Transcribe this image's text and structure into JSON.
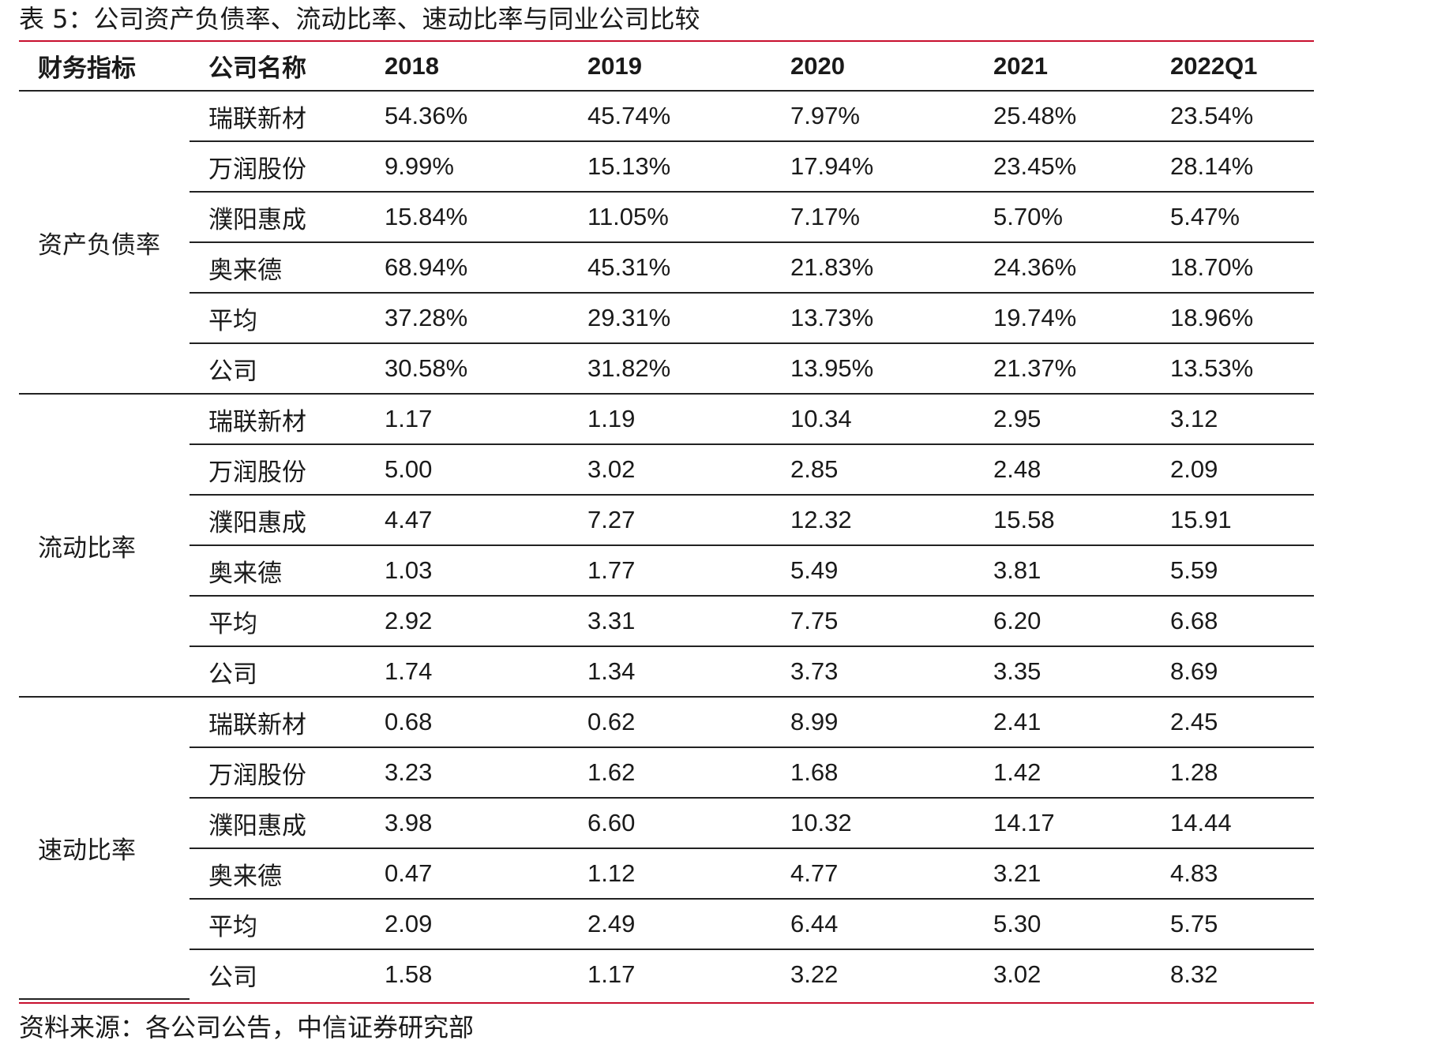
{
  "caption": "表 5：公司资产负债率、流动比率、速动比率与同业公司比较",
  "headers": [
    "财务指标",
    "公司名称",
    "2018",
    "2019",
    "2020",
    "2021",
    "2022Q1"
  ],
  "groups": [
    {
      "metric": "资产负债率",
      "rows": [
        {
          "company": "瑞联新材",
          "values": [
            "54.36%",
            "45.74%",
            "7.97%",
            "25.48%",
            "23.54%"
          ]
        },
        {
          "company": "万润股份",
          "values": [
            "9.99%",
            "15.13%",
            "17.94%",
            "23.45%",
            "28.14%"
          ]
        },
        {
          "company": "濮阳惠成",
          "values": [
            "15.84%",
            "11.05%",
            "7.17%",
            "5.70%",
            "5.47%"
          ]
        },
        {
          "company": "奥来德",
          "values": [
            "68.94%",
            "45.31%",
            "21.83%",
            "24.36%",
            "18.70%"
          ]
        },
        {
          "company": "平均",
          "values": [
            "37.28%",
            "29.31%",
            "13.73%",
            "19.74%",
            "18.96%"
          ]
        },
        {
          "company": "公司",
          "values": [
            "30.58%",
            "31.82%",
            "13.95%",
            "21.37%",
            "13.53%"
          ]
        }
      ]
    },
    {
      "metric": "流动比率",
      "rows": [
        {
          "company": "瑞联新材",
          "values": [
            "1.17",
            "1.19",
            "10.34",
            "2.95",
            "3.12"
          ]
        },
        {
          "company": "万润股份",
          "values": [
            "5.00",
            "3.02",
            "2.85",
            "2.48",
            "2.09"
          ]
        },
        {
          "company": "濮阳惠成",
          "values": [
            "4.47",
            "7.27",
            "12.32",
            "15.58",
            "15.91"
          ]
        },
        {
          "company": "奥来德",
          "values": [
            "1.03",
            "1.77",
            "5.49",
            "3.81",
            "5.59"
          ]
        },
        {
          "company": "平均",
          "values": [
            "2.92",
            "3.31",
            "7.75",
            "6.20",
            "6.68"
          ]
        },
        {
          "company": "公司",
          "values": [
            "1.74",
            "1.34",
            "3.73",
            "3.35",
            "8.69"
          ]
        }
      ]
    },
    {
      "metric": "速动比率",
      "rows": [
        {
          "company": "瑞联新材",
          "values": [
            "0.68",
            "0.62",
            "8.99",
            "2.41",
            "2.45"
          ]
        },
        {
          "company": "万润股份",
          "values": [
            "3.23",
            "1.62",
            "1.68",
            "1.42",
            "1.28"
          ]
        },
        {
          "company": "濮阳惠成",
          "values": [
            "3.98",
            "6.60",
            "10.32",
            "14.17",
            "14.44"
          ]
        },
        {
          "company": "奥来德",
          "values": [
            "0.47",
            "1.12",
            "4.77",
            "3.21",
            "4.83"
          ]
        },
        {
          "company": "平均",
          "values": [
            "2.09",
            "2.49",
            "6.44",
            "5.30",
            "5.75"
          ]
        },
        {
          "company": "公司",
          "values": [
            "1.58",
            "1.17",
            "3.22",
            "3.02",
            "8.32"
          ]
        }
      ]
    }
  ],
  "source": "资料来源：各公司公告，中信证券研究部",
  "colors": {
    "rule_red": "#c8102e",
    "rule_dark": "#222222",
    "text": "#1a1a1a"
  }
}
